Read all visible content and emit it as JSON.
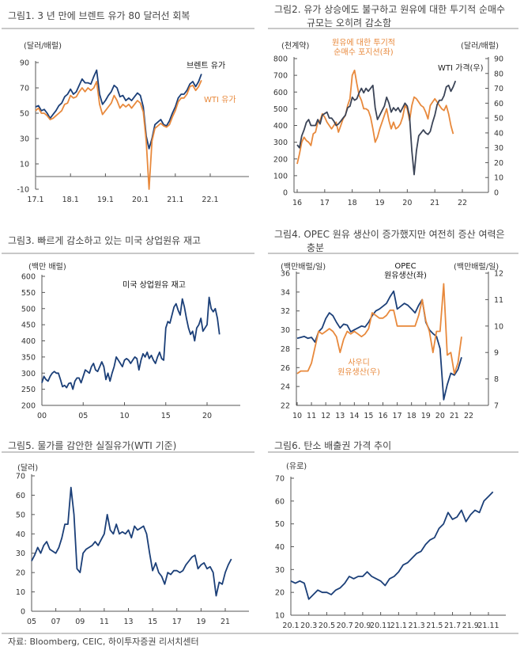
{
  "source": "자료: Bloomberg, CEIC, 하이투자증권 리서치센터",
  "colors": {
    "navy": "#1b3f78",
    "orange": "#e8893c",
    "slate": "#3b4457",
    "axis": "#555555",
    "zero": "#b0b0b0"
  },
  "chart_data": [
    {
      "type": "line",
      "title": "그림1.  3 년 만에 브렌트 유가 80 달러선 회복",
      "ylabel": "(달러/배럴)",
      "ylim": [
        -10,
        90
      ],
      "yticks": [
        -10,
        10,
        30,
        50,
        70,
        90
      ],
      "xlim": [
        2017,
        2022.6
      ],
      "xticks": [
        2017,
        2018,
        2019,
        2020,
        2021,
        2022
      ],
      "xtick_labels": [
        "17.1",
        "18.1",
        "19.1",
        "20.1",
        "21.1",
        "22.1"
      ],
      "series": [
        {
          "name": "브렌트 유가",
          "color": "#1b3f78",
          "axis": "left",
          "start": 2017.0,
          "step": 0.0833333,
          "values": [
            55,
            56,
            52,
            53,
            50,
            46,
            49,
            52,
            56,
            58,
            63,
            65,
            69,
            65,
            67,
            72,
            77,
            74,
            74,
            73,
            79,
            84,
            65,
            57,
            60,
            64,
            67,
            72,
            70,
            63,
            64,
            60,
            62,
            60,
            63,
            66,
            64,
            55,
            32,
            22,
            30,
            41,
            43,
            45,
            41,
            40,
            44,
            50,
            55,
            62,
            65,
            65,
            68,
            73,
            75,
            71,
            75,
            81
          ]
        },
        {
          "name": "WTI 유가",
          "color": "#e8893c",
          "axis": "left",
          "start": 2017.0,
          "step": 0.0833333,
          "values": [
            52,
            54,
            50,
            50,
            48,
            45,
            46,
            48,
            50,
            52,
            57,
            58,
            64,
            62,
            63,
            67,
            70,
            67,
            70,
            68,
            70,
            75,
            57,
            49,
            52,
            55,
            58,
            64,
            60,
            54,
            57,
            55,
            57,
            54,
            57,
            60,
            58,
            51,
            28,
            -10,
            28,
            38,
            40,
            42,
            40,
            39,
            41,
            47,
            52,
            59,
            62,
            62,
            65,
            71,
            72,
            68,
            71,
            76
          ]
        }
      ]
    },
    {
      "type": "line",
      "title_lines": [
        "그림2. 유가 상승에도 불구하고 원유에 대한 투기적 순매수",
        "규모는 오히려 감소함"
      ],
      "ylabel": "(천계약)",
      "ylabel_right": "(달러/배럴)",
      "ylim": [
        0,
        800
      ],
      "yticks": [
        0,
        100,
        200,
        300,
        400,
        500,
        600,
        700,
        800
      ],
      "ylim_right": [
        0,
        90
      ],
      "yticks_right": [
        0,
        10,
        20,
        30,
        40,
        50,
        60,
        70,
        80,
        90
      ],
      "xlim": [
        2016,
        2022.95
      ],
      "xticks": [
        2016,
        2017,
        2018,
        2019,
        2020,
        2021,
        2022
      ],
      "xtick_labels": [
        "16",
        "17",
        "18",
        "19",
        "20",
        "21",
        "22"
      ],
      "series": [
        {
          "name": "원유에 대한 투기적 순매수 포지션(좌)",
          "label_lines": [
            "원유에 대한 투기적",
            "순매수 포지션(좌)"
          ],
          "color": "#e8893c",
          "axis": "left",
          "start": 2016.0,
          "step": 0.0833333,
          "values": [
            170,
            230,
            300,
            330,
            310,
            300,
            280,
            350,
            360,
            420,
            430,
            470,
            450,
            420,
            400,
            380,
            400,
            420,
            360,
            400,
            440,
            460,
            520,
            560,
            700,
            730,
            650,
            580,
            550,
            500,
            500,
            490,
            450,
            380,
            300,
            330,
            380,
            420,
            460,
            500,
            430,
            380,
            420,
            380,
            390,
            410,
            450,
            520,
            500,
            430,
            520,
            570,
            560,
            540,
            520,
            510,
            480,
            440,
            520,
            540,
            560,
            540,
            520,
            500,
            490,
            520,
            470,
            400,
            350
          ]
        },
        {
          "name": "WTI 가격(우)",
          "color": "#3b4457",
          "axis": "right",
          "start": 2016.0,
          "step": 0.0833333,
          "values": [
            32,
            30,
            38,
            42,
            47,
            49,
            45,
            45,
            45,
            49,
            46,
            52,
            53,
            54,
            50,
            50,
            48,
            45,
            46,
            48,
            50,
            52,
            57,
            58,
            64,
            62,
            63,
            67,
            70,
            67,
            70,
            68,
            70,
            72,
            57,
            49,
            52,
            55,
            58,
            64,
            60,
            54,
            57,
            55,
            57,
            54,
            57,
            60,
            58,
            51,
            28,
            12,
            28,
            38,
            40,
            42,
            40,
            39,
            41,
            47,
            52,
            59,
            62,
            62,
            65,
            71,
            72,
            68,
            71,
            75
          ]
        }
      ]
    },
    {
      "type": "line",
      "title": "그림3. 빠르게 감소하고 있는 미국 상업원유 재고",
      "ylabel": "(백만 배럴)",
      "ylim": [
        200,
        600
      ],
      "yticks": [
        200,
        250,
        300,
        350,
        400,
        450,
        500,
        550,
        600
      ],
      "xlim": [
        2000,
        2024
      ],
      "xticks": [
        2000,
        2005,
        2010,
        2015,
        2020
      ],
      "xtick_labels": [
        "00",
        "05",
        "10",
        "15",
        "20"
      ],
      "series": [
        {
          "name": "미국 상업원유 재고",
          "color": "#1b3f78",
          "axis": "left",
          "start": 2000.0,
          "step": 0.25,
          "values": [
            270,
            290,
            280,
            275,
            290,
            300,
            305,
            300,
            300,
            280,
            258,
            262,
            255,
            268,
            270,
            250,
            275,
            285,
            285,
            270,
            290,
            310,
            305,
            300,
            320,
            330,
            310,
            305,
            320,
            335,
            320,
            280,
            300,
            275,
            300,
            320,
            350,
            340,
            330,
            320,
            340,
            345,
            340,
            330,
            340,
            350,
            345,
            310,
            340,
            360,
            350,
            365,
            345,
            355,
            340,
            330,
            350,
            365,
            345,
            340,
            440,
            460,
            455,
            480,
            505,
            515,
            495,
            480,
            530,
            505,
            470,
            440,
            420,
            430,
            400,
            440,
            450,
            470,
            430,
            440,
            450,
            535,
            500,
            490,
            500,
            470,
            420
          ]
        }
      ]
    },
    {
      "type": "line",
      "title_lines": [
        "그림4. OPEC 원유 생산이 증가했지만 여전히 증산 여력은",
        "충분"
      ],
      "ylabel": "(백만배럴/일)",
      "ylabel_right": "(백만배럴/일)",
      "ylim": [
        22,
        36
      ],
      "yticks": [
        22,
        24,
        26,
        28,
        30,
        32,
        34,
        36
      ],
      "ylim_right": [
        7,
        12
      ],
      "yticks_right": [
        7,
        8,
        9,
        10,
        11,
        12
      ],
      "xlim": [
        2010,
        2023.3
      ],
      "xticks": [
        2010,
        2011,
        2012,
        2013,
        2014,
        2015,
        2016,
        2017,
        2018,
        2019,
        2020,
        2021,
        2022
      ],
      "xtick_labels": [
        "10",
        "11",
        "12",
        "13",
        "14",
        "15",
        "16",
        "17",
        "18",
        "19",
        "20",
        "21",
        "22"
      ],
      "series": [
        {
          "name": "OPEC 원유생산(좌)",
          "label_lines": [
            "OPEC",
            "원유생산(좌)"
          ],
          "color": "#1b3f78",
          "axis": "left",
          "start": 2010.0,
          "step": 0.25,
          "values": [
            29.1,
            29.2,
            29.3,
            29.1,
            29.2,
            28.7,
            29.8,
            30.2,
            31.2,
            31.8,
            31.5,
            30.8,
            30.2,
            30.6,
            30.5,
            29.8,
            30.0,
            30.2,
            30.4,
            30.3,
            30.8,
            31.5,
            32.0,
            32.2,
            32.5,
            32.8,
            33.5,
            34.1,
            32.2,
            32.5,
            32.8,
            32.6,
            32.2,
            31.8,
            32.6,
            33.2,
            30.8,
            30.0,
            29.6,
            29.3,
            28.0,
            22.6,
            24.2,
            25.4,
            25.2,
            25.8,
            27.1
          ]
        },
        {
          "name": "사우디 원유생산(우)",
          "label_lines": [
            "사우디",
            "원유생산(우)"
          ],
          "color": "#e8893c",
          "axis": "right",
          "start": 2010.0,
          "step": 0.25,
          "values": [
            8.2,
            8.3,
            8.3,
            8.3,
            8.6,
            9.2,
            9.8,
            9.7,
            9.8,
            9.9,
            9.8,
            9.6,
            9.0,
            9.5,
            9.8,
            9.7,
            9.8,
            9.7,
            9.6,
            9.7,
            9.9,
            10.5,
            10.4,
            10.3,
            10.3,
            10.4,
            10.6,
            10.6,
            10.0,
            10.0,
            10.0,
            10.0,
            10.0,
            10.0,
            10.4,
            11.0,
            10.2,
            9.8,
            9.0,
            9.8,
            9.8,
            11.6,
            8.9,
            9.0,
            8.2,
            8.6,
            9.6
          ]
        }
      ]
    },
    {
      "type": "line",
      "title": "그림5. 물가를 감안한 실질유가(WTI 기준)",
      "ylabel": "(달러)",
      "ylim": [
        0,
        70
      ],
      "yticks": [
        0,
        10,
        20,
        30,
        40,
        50,
        60,
        70
      ],
      "xlim": [
        2005,
        2023
      ],
      "xticks": [
        2005,
        2007,
        2009,
        2011,
        2013,
        2015,
        2017,
        2019,
        2021
      ],
      "xtick_labels": [
        "05",
        "07",
        "09",
        "11",
        "13",
        "15",
        "17",
        "19",
        "21"
      ],
      "series": [
        {
          "name": "실질유가(WTI 기준)",
          "color": "#1b3f78",
          "axis": "left",
          "start": 2005.0,
          "step": 0.25,
          "values": [
            26,
            29,
            33,
            30,
            34,
            36,
            32,
            31,
            30,
            33,
            38,
            45,
            45,
            64,
            50,
            22,
            20,
            30,
            32,
            33,
            34,
            36,
            34,
            37,
            40,
            50,
            42,
            40,
            45,
            40,
            41,
            40,
            42,
            38,
            44,
            42,
            43,
            44,
            40,
            30,
            21,
            25,
            20,
            18,
            14,
            20,
            19,
            21,
            21,
            20,
            21,
            24,
            26,
            28,
            29,
            22,
            24,
            25,
            22,
            23,
            20,
            8,
            15,
            14,
            20,
            24,
            27
          ]
        }
      ]
    },
    {
      "type": "line",
      "title": "그림6. 탄소 배출권 가격 추이",
      "ylabel": "(유로)",
      "ylim": [
        10,
        70
      ],
      "yticks": [
        10,
        20,
        30,
        40,
        50,
        60,
        70
      ],
      "xlim": [
        2020.0,
        2022.1
      ],
      "xticks": [
        2020.0,
        2020.1667,
        2020.3333,
        2020.5,
        2020.6667,
        2020.8333,
        2021.0,
        2021.1667,
        2021.3333,
        2021.5,
        2021.6667,
        2021.8333
      ],
      "xtick_labels": [
        "20.1",
        "20.3",
        "20.5",
        "20.7",
        "20.9",
        "20.11",
        "21.1",
        "21.3",
        "21.5",
        "21.7",
        "21.9",
        "21.11"
      ],
      "series": [
        {
          "name": "탄소 배출권 가격",
          "color": "#1b3f78",
          "axis": "left",
          "start": 2020.0,
          "step": 0.0416667,
          "values": [
            25,
            24,
            25,
            24,
            17,
            19,
            21,
            20,
            20,
            19,
            21,
            22,
            24,
            27,
            26,
            27,
            27,
            29,
            27,
            26,
            25,
            23,
            26,
            27,
            29,
            32,
            33,
            35,
            37,
            38,
            41,
            43,
            44,
            48,
            50,
            55,
            52,
            53,
            56,
            51,
            54,
            56,
            55,
            60,
            62,
            64
          ]
        }
      ]
    }
  ]
}
